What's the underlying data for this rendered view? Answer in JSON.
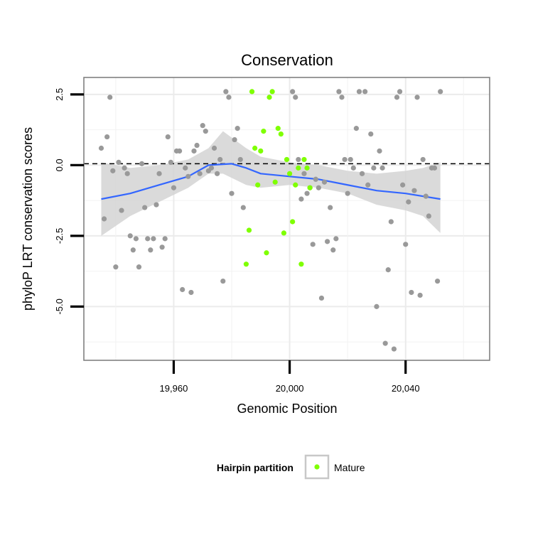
{
  "chart_data": {
    "type": "scatter",
    "title": "Conservation",
    "xlabel": "Genomic Position",
    "ylabel": "phyloP LRT conservation scores",
    "xlim": [
      19929,
      20069
    ],
    "ylim": [
      -6.9,
      3.1
    ],
    "x_ticks": [
      19960,
      20000,
      20040
    ],
    "x_tick_labels": [
      "19,960",
      "20,000",
      "20,040"
    ],
    "y_ticks": [
      2.5,
      0.0,
      -2.5,
      -5.0
    ],
    "y_tick_labels": [
      "2.5",
      "0.0",
      "-2.5",
      "-5.0"
    ],
    "reference_line": 0.05,
    "grid": true,
    "legend": {
      "title": "Hairpin partition",
      "position": "bottom",
      "entries": [
        "Mature"
      ]
    },
    "colors": {
      "other": "#999999",
      "mature": "#7fff00",
      "smooth": "#3366ff",
      "band": "#d3d3d3"
    },
    "series": [
      {
        "group": "other",
        "points": [
          [
            19935,
            0.6
          ],
          [
            19936,
            -1.9
          ],
          [
            19937,
            1.0
          ],
          [
            19938,
            2.4
          ],
          [
            19939,
            -0.2
          ],
          [
            19940,
            -3.6
          ],
          [
            19941,
            0.1
          ],
          [
            19942,
            -1.6
          ],
          [
            19943,
            -0.1
          ],
          [
            19944,
            -0.3
          ],
          [
            19945,
            -2.5
          ],
          [
            19946,
            -3.0
          ],
          [
            19947,
            -2.6
          ],
          [
            19948,
            -3.6
          ],
          [
            19949,
            0.05
          ],
          [
            19950,
            -1.5
          ],
          [
            19951,
            -2.6
          ],
          [
            19952,
            -3.0
          ],
          [
            19953,
            -2.6
          ],
          [
            19954,
            -1.4
          ],
          [
            19955,
            -0.3
          ],
          [
            19956,
            -2.9
          ],
          [
            19957,
            -2.6
          ],
          [
            19958,
            1.0
          ],
          [
            19959,
            0.1
          ],
          [
            19960,
            -0.8
          ],
          [
            19961,
            0.5
          ],
          [
            19962,
            0.5
          ],
          [
            19963,
            -4.4
          ],
          [
            19964,
            -0.1
          ],
          [
            19965,
            -0.4
          ],
          [
            19966,
            -4.5
          ],
          [
            19967,
            0.5
          ],
          [
            19968,
            0.7
          ],
          [
            19969,
            -0.3
          ],
          [
            19970,
            1.4
          ],
          [
            19971,
            1.2
          ],
          [
            19972,
            -0.2
          ],
          [
            19973,
            -0.1
          ],
          [
            19974,
            0.6
          ],
          [
            19975,
            -0.3
          ],
          [
            19976,
            0.2
          ],
          [
            19977,
            -4.1
          ],
          [
            19978,
            2.6
          ],
          [
            19979,
            2.4
          ],
          [
            19980,
            -1.0
          ],
          [
            19981,
            0.9
          ],
          [
            19982,
            1.3
          ],
          [
            19983,
            0.2
          ],
          [
            19984,
            -1.5
          ],
          [
            20001,
            2.6
          ],
          [
            20002,
            2.4
          ],
          [
            20003,
            0.2
          ],
          [
            20004,
            -1.2
          ],
          [
            20005,
            -0.3
          ],
          [
            20006,
            -1.0
          ],
          [
            20007,
            -0.8
          ],
          [
            20008,
            -2.8
          ],
          [
            20009,
            -0.5
          ],
          [
            20010,
            -0.8
          ],
          [
            20011,
            -4.7
          ],
          [
            20012,
            -0.6
          ],
          [
            20013,
            -2.7
          ],
          [
            20014,
            -1.5
          ],
          [
            20015,
            -3.0
          ],
          [
            20016,
            -2.6
          ],
          [
            20017,
            2.6
          ],
          [
            20018,
            2.4
          ],
          [
            20019,
            0.2
          ],
          [
            20020,
            -1.0
          ],
          [
            20021,
            0.2
          ],
          [
            20022,
            -0.1
          ],
          [
            20023,
            1.3
          ],
          [
            20024,
            2.6
          ],
          [
            20025,
            -0.3
          ],
          [
            20026,
            2.6
          ],
          [
            20027,
            -0.7
          ],
          [
            20028,
            1.1
          ],
          [
            20029,
            -0.1
          ],
          [
            20030,
            -5.0
          ],
          [
            20031,
            0.5
          ],
          [
            20032,
            -0.1
          ],
          [
            20033,
            -6.3
          ],
          [
            20034,
            -3.7
          ],
          [
            20035,
            -2.0
          ],
          [
            20036,
            -6.5
          ],
          [
            20037,
            2.4
          ],
          [
            20038,
            2.6
          ],
          [
            20039,
            -0.7
          ],
          [
            20040,
            -2.8
          ],
          [
            20041,
            -1.3
          ],
          [
            20042,
            -4.5
          ],
          [
            20043,
            -0.9
          ],
          [
            20044,
            2.4
          ],
          [
            20045,
            -4.6
          ],
          [
            20046,
            0.2
          ],
          [
            20047,
            -1.1
          ],
          [
            20048,
            -1.8
          ],
          [
            20049,
            -0.1
          ],
          [
            20050,
            -0.1
          ],
          [
            20051,
            -4.1
          ],
          [
            20052,
            2.6
          ]
        ]
      },
      {
        "group": "mature",
        "name": "Mature",
        "points": [
          [
            19985,
            -3.5
          ],
          [
            19986,
            -2.3
          ],
          [
            19987,
            2.6
          ],
          [
            19988,
            0.6
          ],
          [
            19989,
            -0.7
          ],
          [
            19990,
            0.5
          ],
          [
            19991,
            1.2
          ],
          [
            19992,
            -3.1
          ],
          [
            19993,
            2.4
          ],
          [
            19994,
            2.6
          ],
          [
            19995,
            -0.6
          ],
          [
            19996,
            1.3
          ],
          [
            19997,
            1.1
          ],
          [
            19998,
            -2.4
          ],
          [
            19999,
            0.2
          ],
          [
            20000,
            -0.3
          ],
          [
            20001,
            -2.0
          ],
          [
            20002,
            -0.7
          ],
          [
            20003,
            -0.1
          ],
          [
            20004,
            -3.5
          ],
          [
            20005,
            0.2
          ],
          [
            20006,
            -0.1
          ],
          [
            20007,
            -0.8
          ]
        ]
      }
    ],
    "smooth": [
      [
        19935,
        -1.2
      ],
      [
        19945,
        -1.0
      ],
      [
        19955,
        -0.7
      ],
      [
        19965,
        -0.4
      ],
      [
        19972,
        0.0
      ],
      [
        19980,
        0.05
      ],
      [
        19985,
        -0.1
      ],
      [
        19990,
        -0.3
      ],
      [
        20000,
        -0.4
      ],
      [
        20010,
        -0.5
      ],
      [
        20020,
        -0.7
      ],
      [
        20030,
        -0.9
      ],
      [
        20040,
        -1.0
      ],
      [
        20052,
        -1.2
      ]
    ],
    "band": [
      [
        19935,
        -2.5,
        0.1
      ],
      [
        19945,
        -1.8,
        -0.1
      ],
      [
        19955,
        -1.3,
        0.0
      ],
      [
        19965,
        -0.8,
        0.2
      ],
      [
        19972,
        -0.3,
        0.6
      ],
      [
        19977,
        -0.3,
        1.2
      ],
      [
        19985,
        -0.7,
        0.6
      ],
      [
        19990,
        -0.8,
        0.3
      ],
      [
        20000,
        -0.7,
        0.1
      ],
      [
        20010,
        -0.8,
        0.0
      ],
      [
        20020,
        -1.0,
        -0.2
      ],
      [
        20030,
        -1.4,
        -0.3
      ],
      [
        20040,
        -1.6,
        -0.2
      ],
      [
        20046,
        -1.8,
        -0.1
      ],
      [
        20052,
        -2.4,
        0.1
      ]
    ]
  }
}
